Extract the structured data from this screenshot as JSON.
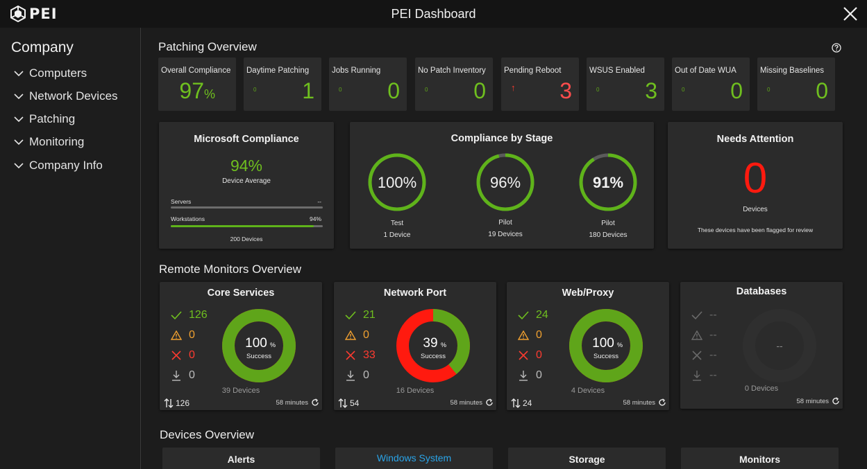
{
  "app": {
    "logo": "PEI",
    "title": "PEI Dashboard"
  },
  "sidebar": {
    "title": "Company",
    "items": [
      {
        "label": "Computers"
      },
      {
        "label": "Network Devices"
      },
      {
        "label": "Patching"
      },
      {
        "label": "Monitoring"
      },
      {
        "label": "Company Info"
      }
    ]
  },
  "patching": {
    "title": "Patching Overview",
    "cards": [
      {
        "label": "Overall Compliance",
        "small": "",
        "value": "97",
        "suffix": "%",
        "status": "ok"
      },
      {
        "label": "Daytime Patching",
        "small": "0",
        "value": "1",
        "suffix": "",
        "status": "ok"
      },
      {
        "label": "Jobs Running",
        "small": "0",
        "value": "0",
        "suffix": "",
        "status": "ok"
      },
      {
        "label": "No Patch Inventory",
        "small": "0",
        "value": "0",
        "suffix": "",
        "status": "ok"
      },
      {
        "label": "Pending Reboot",
        "small": "↑",
        "value": "3",
        "suffix": "",
        "status": "alert"
      },
      {
        "label": "WSUS Enabled",
        "small": "0",
        "value": "3",
        "suffix": "",
        "status": "ok"
      },
      {
        "label": "Out of Date WUA",
        "small": "0",
        "value": "0",
        "suffix": "",
        "status": "ok"
      },
      {
        "label": "Missing Baselines",
        "small": "0",
        "value": "0",
        "suffix": "",
        "status": "ok"
      }
    ]
  },
  "microsoft": {
    "title": "Microsoft Compliance",
    "value": "94%",
    "caption": "Device Average",
    "servers_label": "Servers",
    "servers_value": "--",
    "servers_progress": 0,
    "workstations_label": "Workstations",
    "workstations_value": "94%",
    "workstations_progress": 0.94,
    "devices": "200 Devices"
  },
  "stages": {
    "title": "Compliance by Stage",
    "items": [
      {
        "value": "100%",
        "name": "Test",
        "devices": "1 Device",
        "progress": 1.0
      },
      {
        "value": "96%",
        "name": "Pilot",
        "devices": "19 Devices",
        "progress": 0.96
      },
      {
        "value": "91%",
        "name": "Pilot",
        "devices": "180 Devices",
        "progress": 0.91
      }
    ]
  },
  "attention": {
    "title": "Needs Attention",
    "value": "0",
    "label": "Devices",
    "note": "These devices have been flagged for review"
  },
  "monitors": {
    "title": "Remote Monitors Overview",
    "success_label": "Success",
    "items": [
      {
        "title": "Core Services",
        "ok": "126",
        "warn": "0",
        "fail": "0",
        "pending": "0",
        "pct": "100",
        "pct_symbol": "%",
        "success_fraction": 1.0,
        "devices": "39 Devices",
        "total": "126",
        "age": "58 minutes",
        "enabled": true
      },
      {
        "title": "Network Port",
        "ok": "21",
        "warn": "0",
        "fail": "33",
        "pending": "0",
        "pct": "39",
        "pct_symbol": "%",
        "success_fraction": 0.39,
        "devices": "16 Devices",
        "total": "54",
        "age": "58 minutes",
        "enabled": true
      },
      {
        "title": "Web/Proxy",
        "ok": "24",
        "warn": "0",
        "fail": "0",
        "pending": "0",
        "pct": "100",
        "pct_symbol": "%",
        "success_fraction": 1.0,
        "devices": "4 Devices",
        "total": "24",
        "age": "58 minutes",
        "enabled": true
      },
      {
        "title": "Databases",
        "ok": "--",
        "warn": "--",
        "fail": "--",
        "pending": "--",
        "pct": "--",
        "pct_symbol": "",
        "success_fraction": 0,
        "devices": "0 Devices",
        "total": "",
        "age": "58 minutes",
        "enabled": false
      }
    ]
  },
  "devices_overview": {
    "title": "Devices Overview",
    "tabs": [
      {
        "label": "Alerts",
        "active": false
      },
      {
        "label": "Windows System",
        "active": true
      },
      {
        "label": "Storage",
        "active": false
      },
      {
        "label": "Monitors",
        "active": false
      }
    ]
  },
  "colors": {
    "green": "#6fbf1f",
    "red": "#ff3b30",
    "orange": "#f0a030",
    "blue": "#2aa4e8"
  }
}
